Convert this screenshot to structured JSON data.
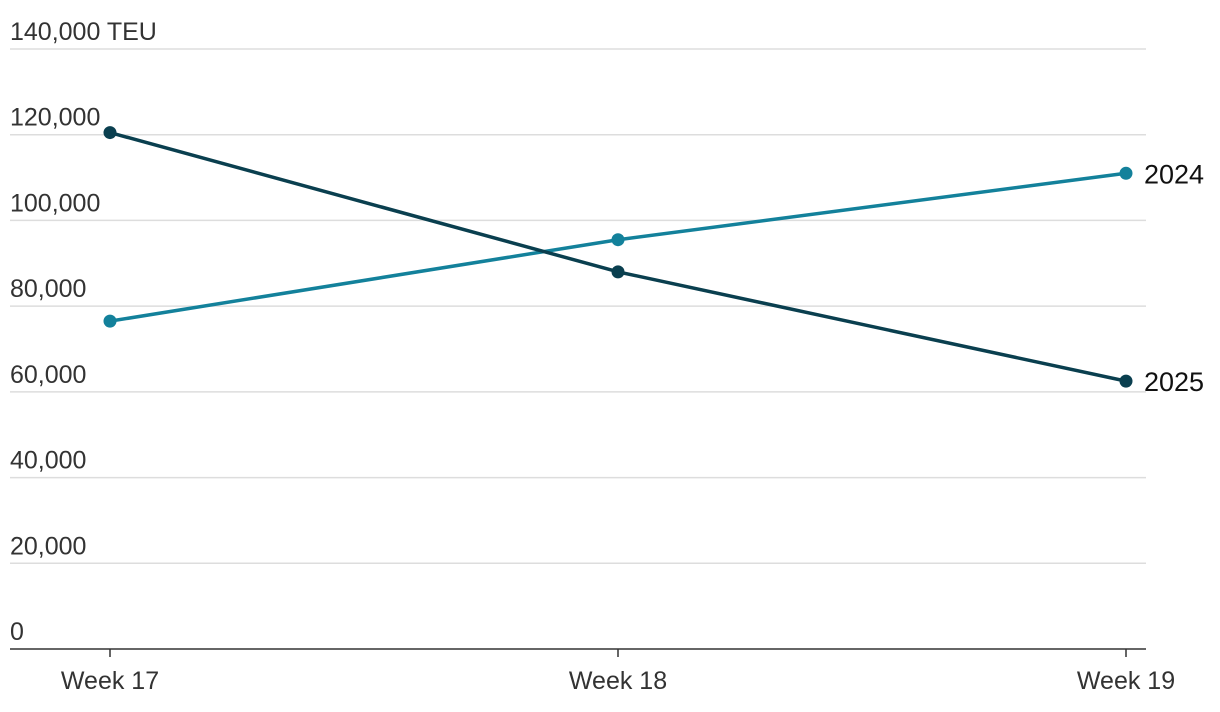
{
  "chart_data": {
    "type": "line",
    "title": "",
    "xlabel": "",
    "ylabel": "TEU",
    "categories": [
      "Week 17",
      "Week 18",
      "Week 19"
    ],
    "ylim": [
      0,
      140000
    ],
    "y_ticks": [
      0,
      20000,
      40000,
      60000,
      80000,
      100000,
      120000,
      140000
    ],
    "y_tick_labels": [
      "0",
      "20,000",
      "40,000",
      "60,000",
      "80,000",
      "100,000",
      "120,000",
      "140,000 TEU"
    ],
    "grid": true,
    "legend": "direct labels at line ends (right)",
    "series": [
      {
        "name": "2024",
        "values": [
          76500,
          95500,
          111000
        ],
        "color": "#13819b"
      },
      {
        "name": "2025",
        "values": [
          120500,
          88000,
          62500
        ],
        "color": "#0a3f4f"
      }
    ]
  }
}
